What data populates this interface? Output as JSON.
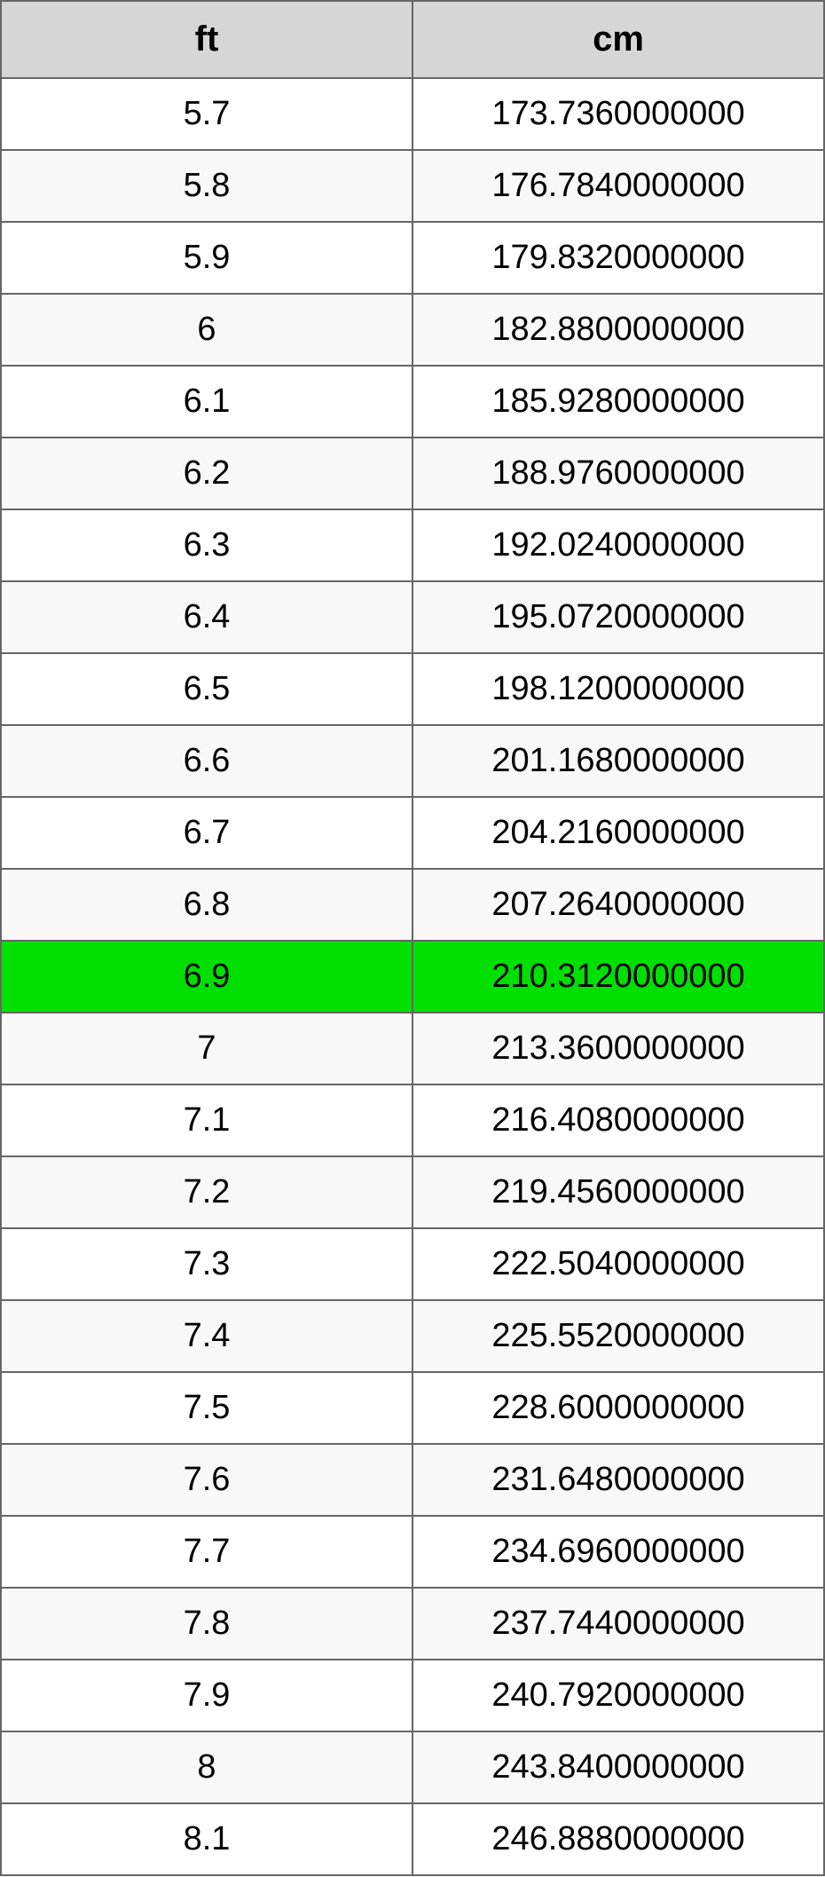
{
  "table": {
    "columns": [
      {
        "label": "ft"
      },
      {
        "label": "cm"
      }
    ],
    "header_background": "#d6d6d6",
    "header_fontsize": 40,
    "cell_fontsize": 38,
    "border_color": "#666666",
    "row_odd_background": "#ffffff",
    "row_even_background": "#f8f8f8",
    "highlight_background": "#00e000",
    "rows": [
      {
        "ft": "5.7",
        "cm": "173.7360000000",
        "highlight": false
      },
      {
        "ft": "5.8",
        "cm": "176.7840000000",
        "highlight": false
      },
      {
        "ft": "5.9",
        "cm": "179.8320000000",
        "highlight": false
      },
      {
        "ft": "6",
        "cm": "182.8800000000",
        "highlight": false
      },
      {
        "ft": "6.1",
        "cm": "185.9280000000",
        "highlight": false
      },
      {
        "ft": "6.2",
        "cm": "188.9760000000",
        "highlight": false
      },
      {
        "ft": "6.3",
        "cm": "192.0240000000",
        "highlight": false
      },
      {
        "ft": "6.4",
        "cm": "195.0720000000",
        "highlight": false
      },
      {
        "ft": "6.5",
        "cm": "198.1200000000",
        "highlight": false
      },
      {
        "ft": "6.6",
        "cm": "201.1680000000",
        "highlight": false
      },
      {
        "ft": "6.7",
        "cm": "204.2160000000",
        "highlight": false
      },
      {
        "ft": "6.8",
        "cm": "207.2640000000",
        "highlight": false
      },
      {
        "ft": "6.9",
        "cm": "210.3120000000",
        "highlight": true
      },
      {
        "ft": "7",
        "cm": "213.3600000000",
        "highlight": false
      },
      {
        "ft": "7.1",
        "cm": "216.4080000000",
        "highlight": false
      },
      {
        "ft": "7.2",
        "cm": "219.4560000000",
        "highlight": false
      },
      {
        "ft": "7.3",
        "cm": "222.5040000000",
        "highlight": false
      },
      {
        "ft": "7.4",
        "cm": "225.5520000000",
        "highlight": false
      },
      {
        "ft": "7.5",
        "cm": "228.6000000000",
        "highlight": false
      },
      {
        "ft": "7.6",
        "cm": "231.6480000000",
        "highlight": false
      },
      {
        "ft": "7.7",
        "cm": "234.6960000000",
        "highlight": false
      },
      {
        "ft": "7.8",
        "cm": "237.7440000000",
        "highlight": false
      },
      {
        "ft": "7.9",
        "cm": "240.7920000000",
        "highlight": false
      },
      {
        "ft": "8",
        "cm": "243.8400000000",
        "highlight": false
      },
      {
        "ft": "8.1",
        "cm": "246.8880000000",
        "highlight": false
      }
    ]
  }
}
